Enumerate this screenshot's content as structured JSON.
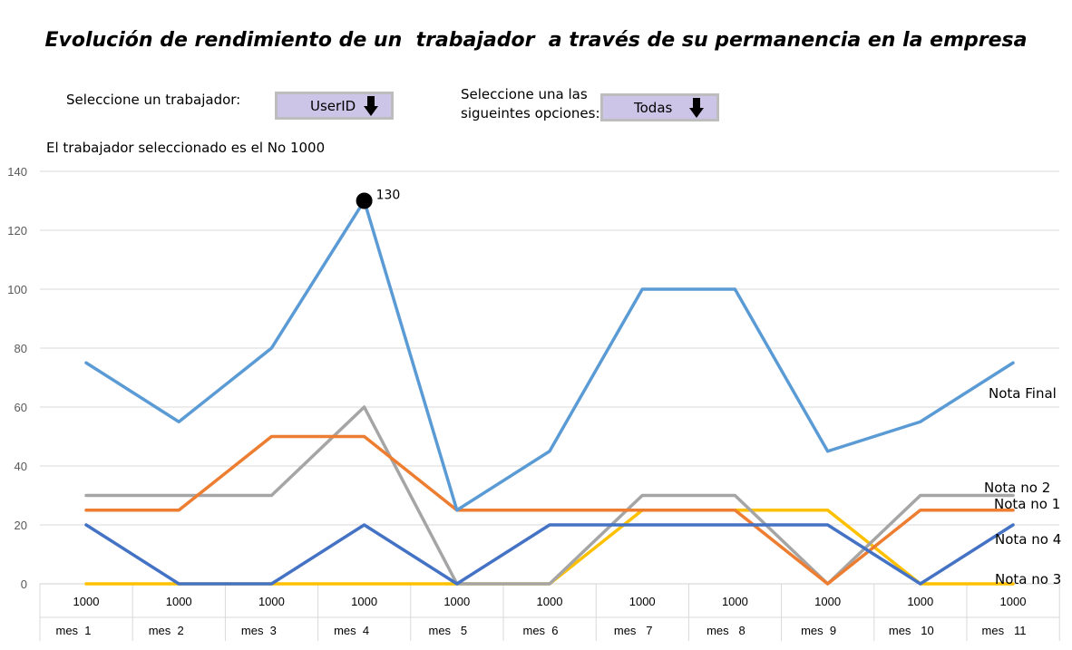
{
  "title": "Evolución de rendimiento de un  trabajador  a través de su permanencia en la empresa",
  "controls": {
    "worker_label": "Seleccione un trabajador:",
    "worker_value": "UserID",
    "options_label_line1": "Seleccione una las",
    "options_label_line2": "sigueintes opciones:",
    "options_value": "Todas"
  },
  "subtitle": "El trabajador seleccionado es el No 1000",
  "chart_data": {
    "type": "line",
    "ylim": [
      0,
      140
    ],
    "yticks": [
      0,
      20,
      40,
      60,
      80,
      100,
      120,
      140
    ],
    "grid": true,
    "categories_top": [
      "1000",
      "1000",
      "1000",
      "1000",
      "1000",
      "1000",
      "1000",
      "1000",
      "1000",
      "1000",
      "1000"
    ],
    "categories_bottom": [
      "mes  1",
      "mes  2",
      "mes  3",
      "mes  4",
      "mes   5",
      "mes  6",
      "mes   7",
      "mes   8",
      "mes  9",
      "mes   10",
      "mes   11"
    ],
    "series": [
      {
        "name": "Nota Final",
        "color": "#5b9bd5",
        "values": [
          75,
          55,
          80,
          130,
          25,
          45,
          100,
          100,
          45,
          55,
          75
        ]
      },
      {
        "name": "Nota no 2",
        "color": "#a5a5a5",
        "values": [
          30,
          30,
          30,
          60,
          0,
          0,
          30,
          30,
          0,
          30,
          30
        ]
      },
      {
        "name": "Nota no 1",
        "color": "#ed7d31",
        "values": [
          25,
          25,
          50,
          50,
          25,
          25,
          25,
          25,
          0,
          25,
          25
        ]
      },
      {
        "name": "Nota no 4",
        "color": "#4472c4",
        "values": [
          20,
          0,
          0,
          20,
          0,
          20,
          20,
          20,
          20,
          0,
          20
        ]
      },
      {
        "name": "Nota no 3",
        "color": "#ffc000",
        "values": [
          0,
          0,
          0,
          0,
          0,
          0,
          25,
          25,
          25,
          0,
          0
        ]
      }
    ],
    "highlight": {
      "series": "Nota Final",
      "index": 3,
      "label": "130"
    }
  }
}
